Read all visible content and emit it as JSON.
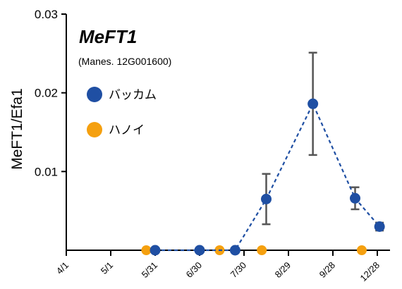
{
  "chart_data": {
    "type": "line",
    "title": "MeFT1",
    "subtitle": "(Manes. 12G001600)",
    "xlabel": "",
    "ylabel": "MeFT1/Efa1",
    "categories": [
      "4/1",
      "5/1",
      "5/31",
      "6/30",
      "7/30",
      "8/29",
      "9/28",
      "12/28"
    ],
    "ylim": [
      0,
      0.03
    ],
    "yticks": [
      0.01,
      0.02,
      0.03
    ],
    "ytick_labels": [
      "0.01",
      "0.02",
      "0.03"
    ],
    "legend_position": "top-left",
    "series": [
      {
        "name": "バッカム",
        "color": "#1f4fa3",
        "line_style": "dashed",
        "x": [
          2.0,
          3.0,
          3.8,
          4.5,
          5.55,
          6.5,
          7.05
        ],
        "y": [
          0.0,
          0.0,
          0.0,
          0.0065,
          0.0186,
          0.0066,
          0.003
        ],
        "error": [
          0.0,
          0.0,
          0.0,
          0.0032,
          0.0065,
          0.0014,
          0.0005
        ]
      },
      {
        "name": "ハノイ",
        "color": "#f5a00f",
        "line_style": "none",
        "x": [
          1.8,
          3.45,
          4.4,
          6.65
        ],
        "y": [
          0.0,
          0.0,
          0.0,
          0.0
        ],
        "error": [
          0,
          0,
          0,
          0
        ]
      }
    ]
  }
}
